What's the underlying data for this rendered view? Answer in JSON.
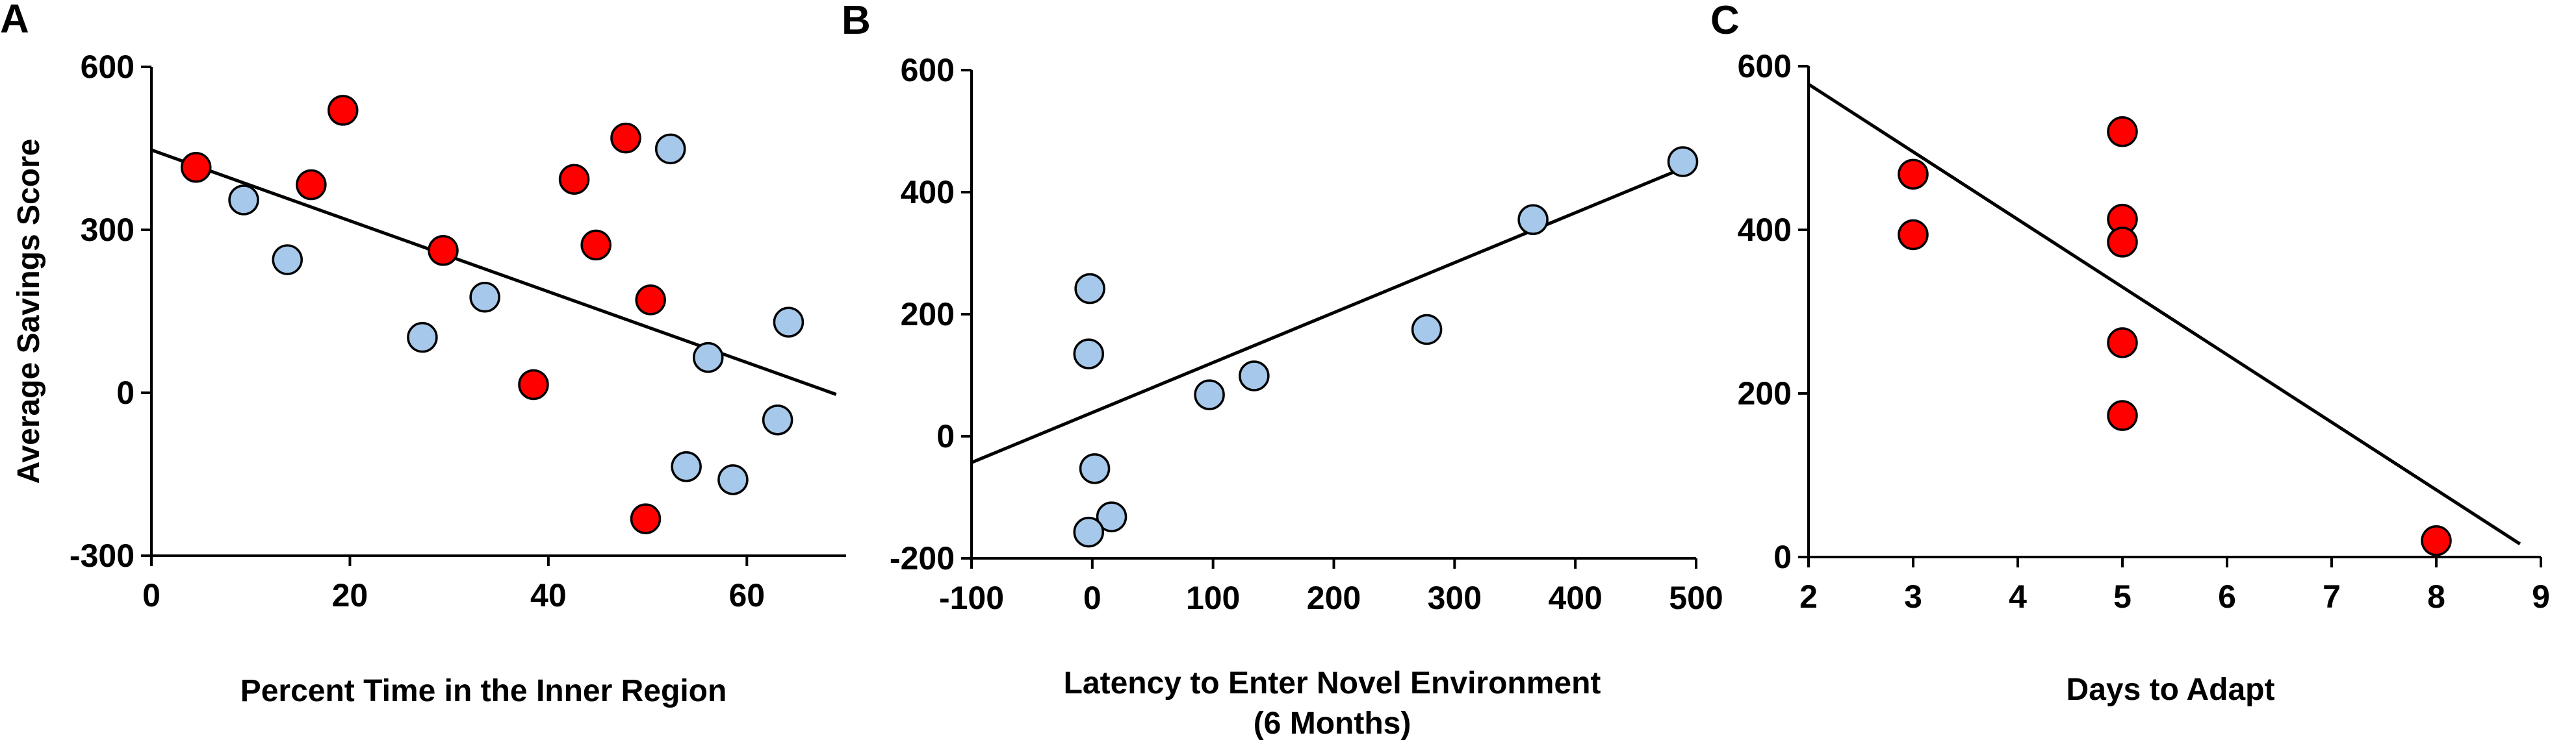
{
  "chart_data": [
    {
      "type": "scatter",
      "panel": "A",
      "title": "",
      "xlabel": "Percent Time in the Inner Region",
      "xlabel2": "",
      "ylabel": "Average Savings Score",
      "xlim": [
        0,
        70
      ],
      "ylim": [
        -300,
        600
      ],
      "xticks": [
        0,
        20,
        40,
        60
      ],
      "yticks": [
        -300,
        0,
        300,
        600
      ],
      "grid": false,
      "legend": "none",
      "colors": {
        "red": "#ff0000",
        "blue": "#a6c8ea"
      },
      "fit_line": [
        [
          0,
          447
        ],
        [
          69,
          -3
        ]
      ],
      "points": [
        {
          "x": 4.5,
          "y": 415,
          "color": "red"
        },
        {
          "x": 9.3,
          "y": 355,
          "color": "blue"
        },
        {
          "x": 13.7,
          "y": 245,
          "color": "blue"
        },
        {
          "x": 16.1,
          "y": 383,
          "color": "red"
        },
        {
          "x": 19.3,
          "y": 520,
          "color": "red"
        },
        {
          "x": 27.3,
          "y": 102,
          "color": "blue"
        },
        {
          "x": 29.4,
          "y": 262,
          "color": "red"
        },
        {
          "x": 33.6,
          "y": 176,
          "color": "blue"
        },
        {
          "x": 38.5,
          "y": 15,
          "color": "red"
        },
        {
          "x": 42.6,
          "y": 393,
          "color": "red"
        },
        {
          "x": 44.8,
          "y": 272,
          "color": "red"
        },
        {
          "x": 47.8,
          "y": 469,
          "color": "red"
        },
        {
          "x": 49.8,
          "y": -232,
          "color": "red"
        },
        {
          "x": 50.3,
          "y": 171,
          "color": "red"
        },
        {
          "x": 52.3,
          "y": 449,
          "color": "blue"
        },
        {
          "x": 53.9,
          "y": -136,
          "color": "blue"
        },
        {
          "x": 56.1,
          "y": 65,
          "color": "blue"
        },
        {
          "x": 58.6,
          "y": -160,
          "color": "blue"
        },
        {
          "x": 63.1,
          "y": -50,
          "color": "blue"
        },
        {
          "x": 64.2,
          "y": 130,
          "color": "blue"
        }
      ]
    },
    {
      "type": "scatter",
      "panel": "B",
      "title": "",
      "xlabel": "Latency to Enter Novel Environment",
      "xlabel2": "(6 Months)",
      "ylabel": "",
      "xlim": [
        -100,
        500
      ],
      "ylim": [
        -200,
        600
      ],
      "xticks": [
        -100,
        0,
        100,
        200,
        300,
        400,
        500
      ],
      "yticks": [
        -200,
        0,
        200,
        400,
        600
      ],
      "grid": false,
      "legend": "none",
      "colors": {
        "red": "#ff0000",
        "blue": "#a6c8ea"
      },
      "fit_line": [
        [
          -100,
          -43
        ],
        [
          490,
          440
        ]
      ],
      "points": [
        {
          "x": -2,
          "y": 242,
          "color": "blue"
        },
        {
          "x": -3,
          "y": 135,
          "color": "blue"
        },
        {
          "x": 2,
          "y": -53,
          "color": "blue"
        },
        {
          "x": 16,
          "y": -132,
          "color": "blue"
        },
        {
          "x": -3,
          "y": -157,
          "color": "blue"
        },
        {
          "x": 97,
          "y": 68,
          "color": "blue"
        },
        {
          "x": 134,
          "y": 99,
          "color": "blue"
        },
        {
          "x": 277,
          "y": 175,
          "color": "blue"
        },
        {
          "x": 365,
          "y": 355,
          "color": "blue"
        },
        {
          "x": 489,
          "y": 450,
          "color": "blue"
        }
      ]
    },
    {
      "type": "scatter",
      "panel": "C",
      "title": "",
      "xlabel": "Days to Adapt",
      "xlabel2": "",
      "ylabel": "",
      "xlim": [
        2,
        9
      ],
      "ylim": [
        0,
        600
      ],
      "xticks": [
        2,
        3,
        4,
        5,
        6,
        7,
        8,
        9
      ],
      "yticks": [
        0,
        200,
        400,
        600
      ],
      "grid": false,
      "legend": "none",
      "colors": {
        "red": "#ff0000",
        "blue": "#a6c8ea"
      },
      "fit_line": [
        [
          2,
          578
        ],
        [
          8.8,
          16
        ]
      ],
      "points": [
        {
          "x": 3,
          "y": 468,
          "color": "red"
        },
        {
          "x": 3,
          "y": 394,
          "color": "red"
        },
        {
          "x": 5,
          "y": 520,
          "color": "red"
        },
        {
          "x": 5,
          "y": 413,
          "color": "red"
        },
        {
          "x": 5,
          "y": 385,
          "color": "red"
        },
        {
          "x": 5,
          "y": 262,
          "color": "red"
        },
        {
          "x": 5,
          "y": 173,
          "color": "red"
        },
        {
          "x": 8,
          "y": 20,
          "color": "red"
        }
      ]
    }
  ]
}
